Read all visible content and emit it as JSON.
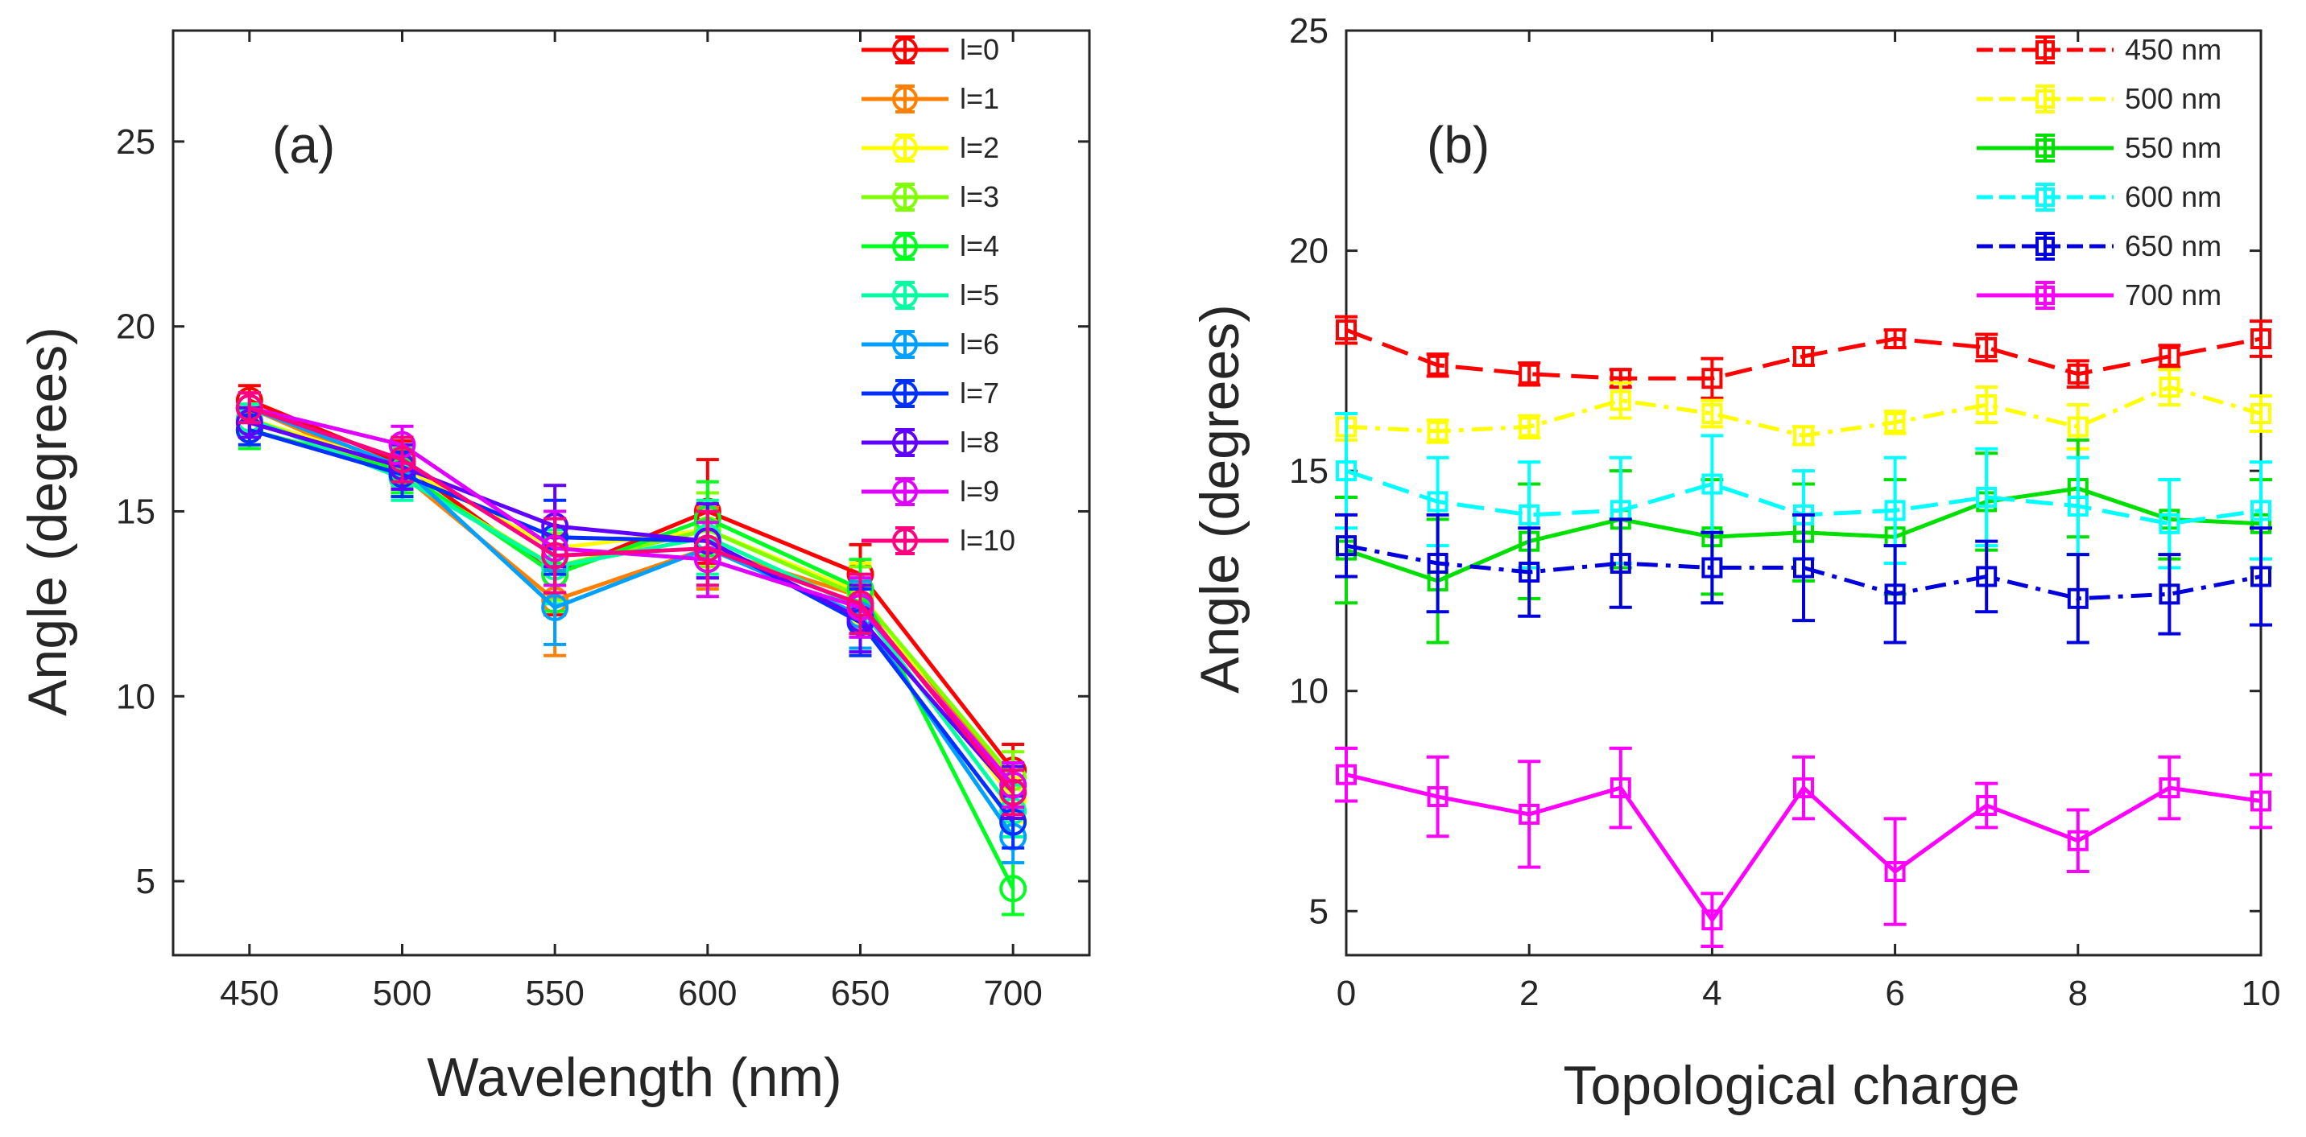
{
  "figure": {
    "panels": [
      "(a)",
      "(b)"
    ]
  },
  "chart_data": [
    {
      "type": "line",
      "panel_label": "(a)",
      "xlabel": "Wavelength (nm)",
      "ylabel": "Angle (degrees)",
      "xlim": [
        425,
        725
      ],
      "ylim": [
        3,
        28
      ],
      "xticks": [
        450,
        500,
        550,
        600,
        650,
        700
      ],
      "yticks": [
        5,
        10,
        15,
        20,
        25
      ],
      "legend_position": "top-right",
      "marker": "circle",
      "x": [
        450,
        500,
        550,
        600,
        650,
        700
      ],
      "series": [
        {
          "name": "l=0",
          "color": "#ff0000",
          "values": [
            18.0,
            16.3,
            13.3,
            15.0,
            13.3,
            8.0
          ],
          "errors": [
            0.4,
            0.6,
            1.1,
            1.4,
            0.8,
            0.7
          ]
        },
        {
          "name": "l=1",
          "color": "#ff8000",
          "values": [
            17.8,
            16.0,
            12.6,
            14.0,
            12.7,
            7.6
          ],
          "errors": [
            0.4,
            0.6,
            1.5,
            1.1,
            0.8,
            0.6
          ]
        },
        {
          "name": "l=2",
          "color": "#ffff00",
          "values": [
            17.5,
            16.2,
            14.0,
            14.5,
            12.8,
            7.2
          ],
          "errors": [
            0.4,
            0.6,
            1.0,
            1.0,
            0.8,
            0.6
          ]
        },
        {
          "name": "l=3",
          "color": "#80ff00",
          "values": [
            17.5,
            16.0,
            13.5,
            14.5,
            12.7,
            7.8
          ],
          "errors": [
            0.4,
            0.6,
            0.9,
            1.0,
            0.8,
            0.7
          ]
        },
        {
          "name": "l=4",
          "color": "#00ff20",
          "values": [
            17.2,
            16.1,
            13.3,
            14.8,
            12.9,
            4.8
          ],
          "errors": [
            0.5,
            0.6,
            1.0,
            1.0,
            0.8,
            0.7
          ]
        },
        {
          "name": "l=5",
          "color": "#00ffa0",
          "values": [
            17.5,
            15.9,
            13.5,
            14.3,
            12.4,
            6.9
          ],
          "errors": [
            0.4,
            0.6,
            1.0,
            1.0,
            0.8,
            0.7
          ]
        },
        {
          "name": "l=6",
          "color": "#00a0ff",
          "values": [
            17.8,
            16.2,
            12.4,
            14.0,
            12.2,
            6.2
          ],
          "errors": [
            0.4,
            0.6,
            1.0,
            1.0,
            0.9,
            0.7
          ]
        },
        {
          "name": "l=7",
          "color": "#0030ff",
          "values": [
            17.2,
            16.0,
            14.3,
            14.2,
            12.0,
            6.6
          ],
          "errors": [
            0.4,
            0.6,
            1.0,
            1.0,
            0.9,
            0.7
          ]
        },
        {
          "name": "l=8",
          "color": "#6000ff",
          "values": [
            17.4,
            16.2,
            14.6,
            14.2,
            12.1,
            7.4
          ],
          "errors": [
            0.4,
            0.6,
            1.1,
            1.0,
            0.9,
            0.7
          ]
        },
        {
          "name": "l=9",
          "color": "#e000ff",
          "values": [
            17.8,
            16.8,
            14.0,
            13.7,
            12.4,
            7.6
          ],
          "errors": [
            0.4,
            0.5,
            1.0,
            1.0,
            0.8,
            0.6
          ]
        },
        {
          "name": "l=10",
          "color": "#ff0080",
          "values": [
            17.8,
            16.4,
            13.8,
            14.0,
            12.5,
            7.4
          ],
          "errors": [
            0.4,
            0.6,
            1.0,
            1.0,
            0.8,
            0.6
          ]
        }
      ]
    },
    {
      "type": "line",
      "panel_label": "(b)",
      "xlabel": "Topological charge",
      "ylabel": "Angle (degrees)",
      "xlim": [
        0,
        10
      ],
      "ylim": [
        4,
        25
      ],
      "xticks": [
        0,
        2,
        4,
        6,
        8,
        10
      ],
      "yticks": [
        5,
        10,
        15,
        20,
        25
      ],
      "legend_position": "top-right",
      "marker": "square",
      "x": [
        0,
        1,
        2,
        3,
        4,
        5,
        6,
        7,
        8,
        9,
        10
      ],
      "series": [
        {
          "name": "450 nm",
          "color": "#ff0000",
          "line_style": "dashed",
          "values": [
            18.2,
            17.4,
            17.2,
            17.1,
            17.1,
            17.6,
            18.0,
            17.8,
            17.2,
            17.6,
            18.0
          ],
          "errors": [
            0.3,
            0.25,
            0.25,
            0.2,
            0.45,
            0.2,
            0.2,
            0.3,
            0.3,
            0.25,
            0.4
          ]
        },
        {
          "name": "500 nm",
          "color": "#ffff00",
          "line_style": "dash-dot",
          "values": [
            16.0,
            15.9,
            16.0,
            16.6,
            16.3,
            15.8,
            16.1,
            16.5,
            16.0,
            16.9,
            16.3
          ],
          "errors": [
            0.3,
            0.25,
            0.25,
            0.4,
            0.3,
            0.2,
            0.25,
            0.4,
            0.5,
            0.4,
            0.4
          ]
        },
        {
          "name": "550 nm",
          "color": "#00e000",
          "line_style": "solid",
          "values": [
            13.2,
            12.5,
            13.4,
            13.9,
            13.5,
            13.6,
            13.5,
            14.3,
            14.6,
            13.9,
            13.8
          ],
          "errors": [
            1.2,
            1.4,
            1.3,
            1.1,
            1.3,
            1.1,
            1.3,
            1.1,
            1.1,
            0.9,
            1.0
          ]
        },
        {
          "name": "600 nm",
          "color": "#00ffff",
          "line_style": "dashed",
          "values": [
            15.0,
            14.3,
            14.0,
            14.1,
            14.7,
            14.0,
            14.1,
            14.4,
            14.2,
            13.8,
            14.1
          ],
          "errors": [
            1.3,
            1.0,
            1.2,
            1.2,
            1.1,
            1.0,
            1.2,
            1.1,
            1.1,
            1.0,
            1.1
          ]
        },
        {
          "name": "650 nm",
          "color": "#0000dd",
          "line_style": "dash-dot",
          "values": [
            13.3,
            12.9,
            12.7,
            12.9,
            12.8,
            12.8,
            12.2,
            12.6,
            12.1,
            12.2,
            12.6
          ],
          "errors": [
            0.7,
            1.1,
            1.0,
            1.0,
            0.8,
            1.2,
            1.1,
            0.8,
            1.0,
            0.9,
            1.1
          ]
        },
        {
          "name": "700 nm",
          "color": "#ff00ff",
          "line_style": "solid",
          "values": [
            8.1,
            7.6,
            7.2,
            7.8,
            4.8,
            7.8,
            5.9,
            7.4,
            6.6,
            7.8,
            7.5
          ],
          "errors": [
            0.6,
            0.9,
            1.2,
            0.9,
            0.6,
            0.7,
            1.2,
            0.5,
            0.7,
            0.7,
            0.6
          ]
        }
      ]
    }
  ]
}
